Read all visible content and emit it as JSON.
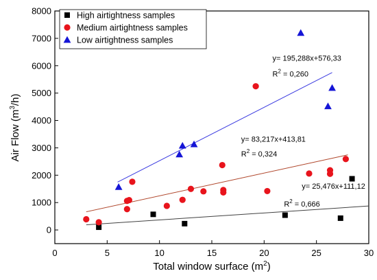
{
  "chart_data": {
    "type": "scatter",
    "title": "",
    "xlabel": "Total window surface (m",
    "xlabel_sup": "2",
    "xlabel_close": ")",
    "ylabel": "Air Flow (m",
    "ylabel_sup": "3",
    "ylabel_close": "/h)",
    "xlim": [
      0,
      30
    ],
    "ylim": [
      -500,
      8000
    ],
    "xticks": [
      0,
      5,
      10,
      15,
      20,
      25,
      30
    ],
    "yticks": [
      0,
      1000,
      2000,
      3000,
      4000,
      5000,
      6000,
      7000,
      8000
    ],
    "grid": false,
    "legend_position": "top-left",
    "series": [
      {
        "name": "High airtightness samples",
        "marker": "square",
        "color": "#000000",
        "points": [
          [
            4.2,
            100
          ],
          [
            9.4,
            570
          ],
          [
            12.4,
            230
          ],
          [
            22.0,
            540
          ],
          [
            27.3,
            430
          ],
          [
            28.4,
            1870
          ]
        ],
        "fit": {
          "equation": "y= 25,476x+111,12",
          "r2_label": "R",
          "r2_sup": "2",
          "r2_value": "= 0,666",
          "slope": 25.476,
          "intercept": 111.12,
          "x_range": [
            3.0,
            30.0
          ],
          "color": "#404040"
        }
      },
      {
        "name": "Medium airtightness samples",
        "marker": "circle",
        "color": "#e8141c",
        "points": [
          [
            3.0,
            390
          ],
          [
            4.2,
            280
          ],
          [
            6.9,
            1060
          ],
          [
            7.1,
            1090
          ],
          [
            6.9,
            760
          ],
          [
            7.4,
            1760
          ],
          [
            10.7,
            880
          ],
          [
            12.2,
            1100
          ],
          [
            13.0,
            1500
          ],
          [
            14.2,
            1410
          ],
          [
            16.0,
            2370
          ],
          [
            16.1,
            1460
          ],
          [
            16.1,
            1370
          ],
          [
            20.3,
            1420
          ],
          [
            24.3,
            2060
          ],
          [
            26.3,
            2180
          ],
          [
            26.3,
            2050
          ],
          [
            27.8,
            2590
          ],
          [
            19.2,
            5250
          ]
        ],
        "fit": {
          "equation": "y= 83,217x+413,81",
          "r2_label": "R",
          "r2_sup": "2",
          "r2_value": "= 0,324",
          "slope": 83.217,
          "intercept": 413.81,
          "x_range": [
            3.0,
            28.0
          ],
          "color": "#b0472c"
        }
      },
      {
        "name": "Low airtightness samples",
        "marker": "triangle",
        "color": "#1515d6",
        "points": [
          [
            6.1,
            1570
          ],
          [
            11.9,
            2760
          ],
          [
            12.2,
            3080
          ],
          [
            13.3,
            3130
          ],
          [
            23.5,
            7200
          ],
          [
            26.1,
            4520
          ],
          [
            26.5,
            5190
          ]
        ],
        "fit": {
          "equation": "y= 195,288x+576,33",
          "r2_label": "R",
          "r2_sup": "2",
          "r2_value": "= 0,260",
          "slope": 195.288,
          "intercept": 576.33,
          "x_range": [
            6.0,
            26.5
          ],
          "color": "#3a3ae0"
        }
      }
    ]
  }
}
